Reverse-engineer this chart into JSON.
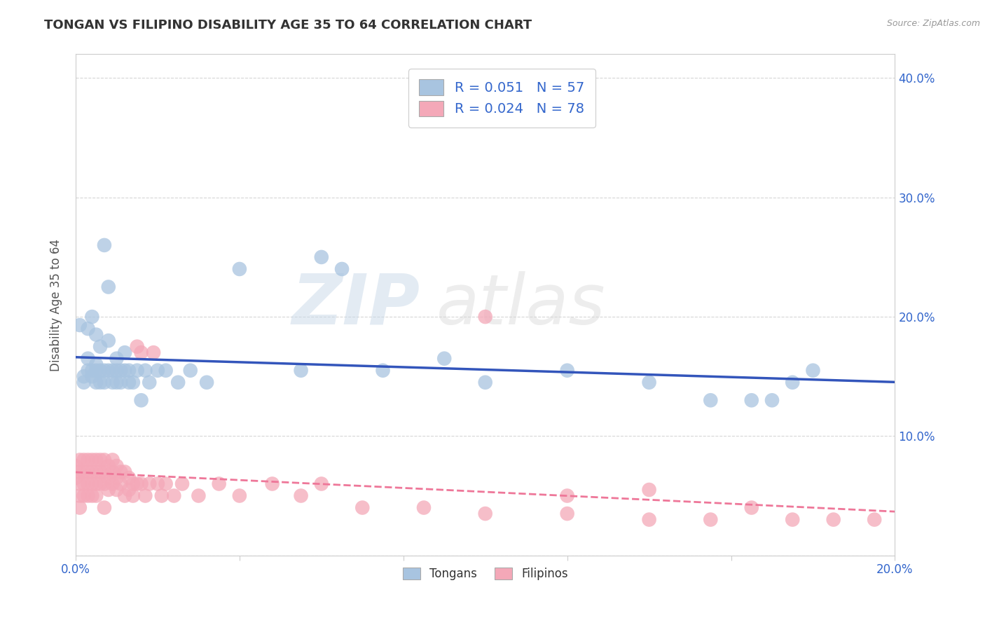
{
  "title": "TONGAN VS FILIPINO DISABILITY AGE 35 TO 64 CORRELATION CHART",
  "source_text": "Source: ZipAtlas.com",
  "ylabel_label": "Disability Age 35 to 64",
  "x_min": 0.0,
  "x_max": 0.2,
  "y_min": 0.0,
  "y_max": 0.42,
  "tongan_R": 0.051,
  "tongan_N": 57,
  "filipino_R": 0.024,
  "filipino_N": 78,
  "tongan_color": "#A8C4E0",
  "filipino_color": "#F4A8B8",
  "tongan_line_color": "#3355BB",
  "filipino_line_color": "#EE7799",
  "watermark_zip": "ZIP",
  "watermark_atlas": "atlas",
  "legend_tongans": "Tongans",
  "legend_filipinos": "Filipinos",
  "tongan_x": [
    0.001,
    0.002,
    0.002,
    0.003,
    0.003,
    0.003,
    0.004,
    0.004,
    0.004,
    0.005,
    0.005,
    0.005,
    0.005,
    0.006,
    0.006,
    0.006,
    0.007,
    0.007,
    0.007,
    0.008,
    0.008,
    0.008,
    0.009,
    0.009,
    0.01,
    0.01,
    0.01,
    0.011,
    0.011,
    0.012,
    0.012,
    0.013,
    0.013,
    0.014,
    0.015,
    0.016,
    0.017,
    0.018,
    0.02,
    0.022,
    0.025,
    0.028,
    0.032,
    0.04,
    0.055,
    0.06,
    0.065,
    0.075,
    0.09,
    0.1,
    0.12,
    0.14,
    0.155,
    0.165,
    0.17,
    0.175,
    0.18
  ],
  "tongan_y": [
    0.193,
    0.15,
    0.145,
    0.155,
    0.165,
    0.19,
    0.15,
    0.155,
    0.2,
    0.145,
    0.155,
    0.16,
    0.185,
    0.145,
    0.155,
    0.175,
    0.145,
    0.155,
    0.26,
    0.155,
    0.18,
    0.225,
    0.145,
    0.155,
    0.145,
    0.155,
    0.165,
    0.145,
    0.155,
    0.155,
    0.17,
    0.145,
    0.155,
    0.145,
    0.155,
    0.13,
    0.155,
    0.145,
    0.155,
    0.155,
    0.145,
    0.155,
    0.145,
    0.24,
    0.155,
    0.25,
    0.24,
    0.155,
    0.165,
    0.145,
    0.155,
    0.145,
    0.13,
    0.13,
    0.13,
    0.145,
    0.155
  ],
  "filipino_x": [
    0.0,
    0.0,
    0.001,
    0.001,
    0.001,
    0.001,
    0.001,
    0.002,
    0.002,
    0.002,
    0.002,
    0.003,
    0.003,
    0.003,
    0.003,
    0.004,
    0.004,
    0.004,
    0.004,
    0.005,
    0.005,
    0.005,
    0.005,
    0.006,
    0.006,
    0.006,
    0.007,
    0.007,
    0.007,
    0.007,
    0.008,
    0.008,
    0.008,
    0.009,
    0.009,
    0.009,
    0.01,
    0.01,
    0.01,
    0.011,
    0.011,
    0.012,
    0.012,
    0.013,
    0.013,
    0.014,
    0.014,
    0.015,
    0.015,
    0.016,
    0.016,
    0.017,
    0.018,
    0.019,
    0.02,
    0.021,
    0.022,
    0.024,
    0.026,
    0.03,
    0.035,
    0.04,
    0.048,
    0.055,
    0.07,
    0.085,
    0.1,
    0.12,
    0.14,
    0.155,
    0.165,
    0.175,
    0.185,
    0.195,
    0.1,
    0.12,
    0.14,
    0.06
  ],
  "filipino_y": [
    0.075,
    0.065,
    0.08,
    0.07,
    0.06,
    0.05,
    0.04,
    0.08,
    0.07,
    0.06,
    0.05,
    0.08,
    0.07,
    0.06,
    0.05,
    0.08,
    0.07,
    0.06,
    0.05,
    0.08,
    0.07,
    0.06,
    0.05,
    0.08,
    0.07,
    0.06,
    0.08,
    0.07,
    0.06,
    0.04,
    0.075,
    0.065,
    0.055,
    0.08,
    0.07,
    0.06,
    0.075,
    0.065,
    0.055,
    0.07,
    0.06,
    0.07,
    0.05,
    0.065,
    0.055,
    0.06,
    0.05,
    0.175,
    0.06,
    0.17,
    0.06,
    0.05,
    0.06,
    0.17,
    0.06,
    0.05,
    0.06,
    0.05,
    0.06,
    0.05,
    0.06,
    0.05,
    0.06,
    0.05,
    0.04,
    0.04,
    0.035,
    0.035,
    0.03,
    0.03,
    0.04,
    0.03,
    0.03,
    0.03,
    0.2,
    0.05,
    0.055,
    0.06
  ]
}
